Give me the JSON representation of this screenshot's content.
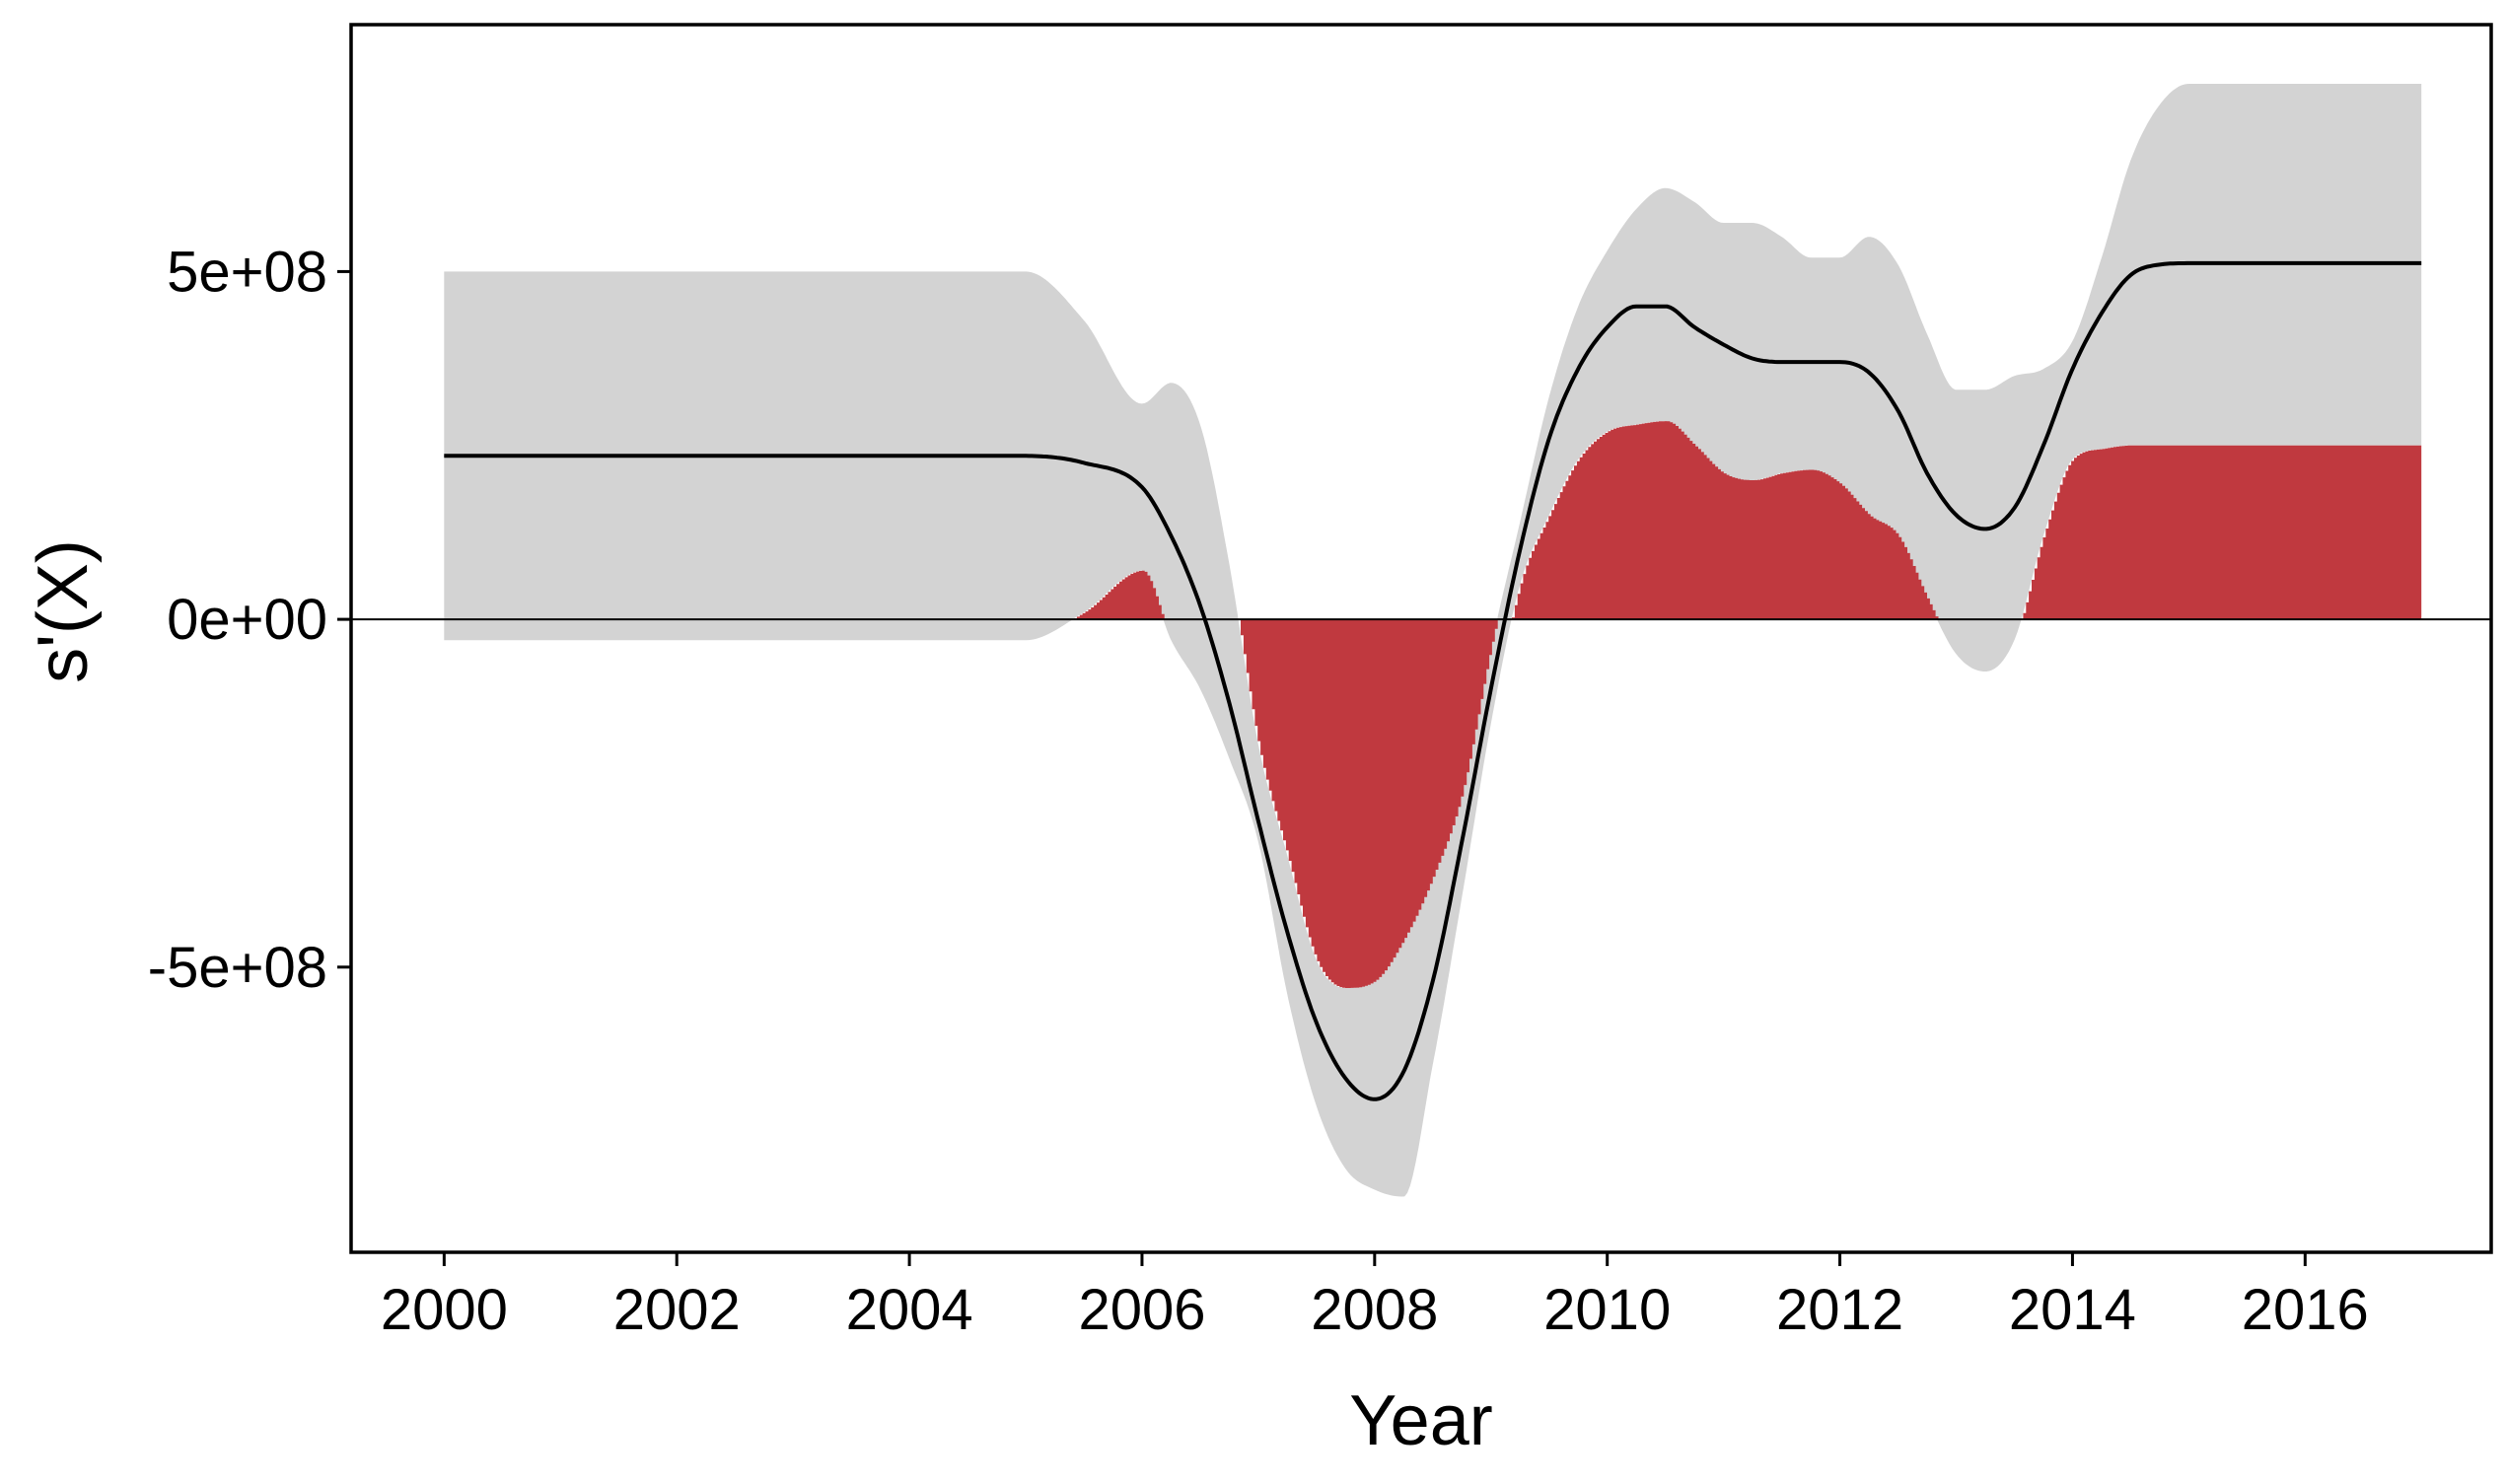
{
  "chart_data": {
    "type": "area",
    "title": "",
    "xlabel": "Year",
    "ylabel": "s'(X)",
    "xlim": [
      1999.2,
      2017.6
    ],
    "ylim": [
      -910000000.0,
      855000000.0
    ],
    "x_ticks": [
      2000,
      2002,
      2004,
      2006,
      2008,
      2010,
      2012,
      2014,
      2016
    ],
    "x_tick_labels": [
      "2000",
      "2002",
      "2004",
      "2006",
      "2008",
      "2010",
      "2012",
      "2014",
      "2016"
    ],
    "y_ticks": [
      -500000000.0,
      0,
      500000000.0
    ],
    "y_tick_labels": [
      "-5e+08",
      "0e+00",
      "5e+08"
    ],
    "grid": false,
    "legend": "none",
    "colors": {
      "band": "#d3d3d3",
      "fill": "#c0393f",
      "line": "#000000",
      "zero_line": "#000000",
      "frame": "#000000"
    },
    "x": [
      2000,
      2001,
      2002,
      2003,
      2004,
      2005,
      2005.5,
      2006,
      2006.25,
      2006.5,
      2006.75,
      2007,
      2007.25,
      2007.5,
      2007.75,
      2008,
      2008.25,
      2008.5,
      2008.75,
      2009,
      2009.25,
      2009.5,
      2009.75,
      2010,
      2010.25,
      2010.5,
      2010.75,
      2011,
      2011.25,
      2011.5,
      2011.75,
      2012,
      2012.25,
      2012.5,
      2012.75,
      2013,
      2013.25,
      2013.5,
      2013.75,
      2014,
      2014.25,
      2014.5,
      2014.75,
      2015,
      2015.5,
      2016,
      2016.5,
      2017
    ],
    "series": [
      {
        "role": "estimate",
        "values": [
          235000000.0,
          235000000.0,
          235000000.0,
          235000000.0,
          235000000.0,
          235000000.0,
          225000000.0,
          190000000.0,
          120000000.0,
          20000000.0,
          -120000000.0,
          -290000000.0,
          -450000000.0,
          -580000000.0,
          -660000000.0,
          -690000000.0,
          -650000000.0,
          -520000000.0,
          -320000000.0,
          -100000000.0,
          100000000.0,
          260000000.0,
          360000000.0,
          420000000.0,
          450000000.0,
          450000000.0,
          420000000.0,
          395000000.0,
          375000000.0,
          370000000.0,
          370000000.0,
          370000000.0,
          355000000.0,
          300000000.0,
          210000000.0,
          150000000.0,
          130000000.0,
          160000000.0,
          250000000.0,
          360000000.0,
          440000000.0,
          495000000.0,
          510000000.0,
          512000000.0,
          512000000.0,
          512000000.0,
          512000000.0,
          512000000.0
        ]
      },
      {
        "role": "upper",
        "values": [
          500000000.0,
          500000000.0,
          500000000.0,
          500000000.0,
          500000000.0,
          500000000.0,
          430000000.0,
          310000000.0,
          340000000.0,
          280000000.0,
          80000000.0,
          -180000000.0,
          -340000000.0,
          -490000000.0,
          -530000000.0,
          -520000000.0,
          -460000000.0,
          -370000000.0,
          -250000000.0,
          -40000000.0,
          140000000.0,
          320000000.0,
          450000000.0,
          530000000.0,
          590000000.0,
          620000000.0,
          600000000.0,
          570000000.0,
          570000000.0,
          550000000.0,
          520000000.0,
          520000000.0,
          550000000.0,
          510000000.0,
          410000000.0,
          330000000.0,
          330000000.0,
          350000000.0,
          360000000.0,
          400000000.0,
          520000000.0,
          660000000.0,
          740000000.0,
          770000000.0,
          770000000.0,
          770000000.0,
          770000000.0,
          770000000.0
        ]
      },
      {
        "role": "lower",
        "values": [
          -30000000.0,
          -30000000.0,
          -30000000.0,
          -30000000.0,
          -30000000.0,
          -30000000.0,
          10000000.0,
          70000000.0,
          -30000000.0,
          -100000000.0,
          -200000000.0,
          -320000000.0,
          -540000000.0,
          -700000000.0,
          -790000000.0,
          -820000000.0,
          -830000000.0,
          -640000000.0,
          -400000000.0,
          -150000000.0,
          50000000.0,
          150000000.0,
          230000000.0,
          270000000.0,
          280000000.0,
          285000000.0,
          250000000.0,
          210000000.0,
          200000000.0,
          210000000.0,
          215000000.0,
          195000000.0,
          150000000.0,
          120000000.0,
          30000000.0,
          -50000000.0,
          -75000000.0,
          -30000000.0,
          120000000.0,
          230000000.0,
          245000000.0,
          250000000.0,
          250000000.0,
          250000000.0,
          250000000.0,
          250000000.0,
          250000000.0,
          250000000.0
        ]
      }
    ]
  }
}
